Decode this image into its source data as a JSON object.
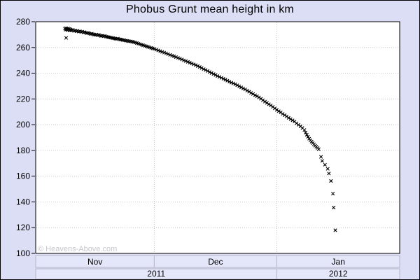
{
  "window": {
    "title": "Phobus Grunt mean height in km"
  },
  "watermark": "© Heavens-Above.com",
  "colors": {
    "background": "#dcdef5",
    "plot_background": "#ffffff",
    "plot_border": "#000000",
    "gridline": "#c8c8c8",
    "marker": "#000000",
    "band_fill": "#e4e6fa",
    "band_border": "#b6b6c6",
    "text": "#000000",
    "watermark_text": "#c6c6cc"
  },
  "chart_data": {
    "type": "scatter",
    "title": "Phobus Grunt mean height in km",
    "xlabel": "",
    "ylabel": "",
    "marker": "x",
    "grid": true,
    "x_unit": "days since 2011-11-01",
    "xlim": [
      0,
      92.1
    ],
    "ylim": [
      100,
      280
    ],
    "y_ticks": [
      280,
      260,
      240,
      220,
      200,
      180,
      160,
      140,
      120,
      100
    ],
    "y_gridlines": [
      260,
      240,
      220,
      200,
      180,
      160,
      140,
      120
    ],
    "x_gridlines": [
      30,
      61
    ],
    "month_bands": [
      {
        "label": "Nov",
        "start": 0,
        "end": 30
      },
      {
        "label": "Dec",
        "start": 30,
        "end": 61
      },
      {
        "label": "Jan",
        "start": 61,
        "end": 92.1
      }
    ],
    "year_bands": [
      {
        "label": "2011",
        "start": 0,
        "end": 61
      },
      {
        "label": "2012",
        "start": 61,
        "end": 92.1
      }
    ],
    "points": [
      [
        7.4,
        274.6
      ],
      [
        7.6,
        273.8
      ],
      [
        7.7,
        267.4
      ],
      [
        7.7,
        274.9
      ],
      [
        7.9,
        274.2
      ],
      [
        8.0,
        273.5
      ],
      [
        8.2,
        274.7
      ],
      [
        8.3,
        273.9
      ],
      [
        8.5,
        274.4
      ],
      [
        8.6,
        273.2
      ],
      [
        8.8,
        274.0
      ],
      [
        8.9,
        273.6
      ],
      [
        9.1,
        273.3
      ],
      [
        9.4,
        273.7
      ],
      [
        9.7,
        272.9
      ],
      [
        10.0,
        273.1
      ],
      [
        10.3,
        272.6
      ],
      [
        10.6,
        272.9
      ],
      [
        10.9,
        272.3
      ],
      [
        11.2,
        272.6
      ],
      [
        11.5,
        272.0
      ],
      [
        11.8,
        272.3
      ],
      [
        12.1,
        271.7
      ],
      [
        12.4,
        271.9
      ],
      [
        12.7,
        271.4
      ],
      [
        13.0,
        271.1
      ],
      [
        13.3,
        271.3
      ],
      [
        13.6,
        270.8
      ],
      [
        13.9,
        270.5
      ],
      [
        14.2,
        270.7
      ],
      [
        14.5,
        270.2
      ],
      [
        14.8,
        270.0
      ],
      [
        15.1,
        269.8
      ],
      [
        15.4,
        270.0
      ],
      [
        15.7,
        269.5
      ],
      [
        16.0,
        269.7
      ],
      [
        16.3,
        269.2
      ],
      [
        16.6,
        268.9
      ],
      [
        16.9,
        269.1
      ],
      [
        17.2,
        268.7
      ],
      [
        17.5,
        268.9
      ],
      [
        17.8,
        268.4
      ],
      [
        18.1,
        268.2
      ],
      [
        18.4,
        268.0
      ],
      [
        18.7,
        267.8
      ],
      [
        19.0,
        267.6
      ],
      [
        19.3,
        267.4
      ],
      [
        19.6,
        267.2
      ],
      [
        19.9,
        267.0
      ],
      [
        20.2,
        266.8
      ],
      [
        20.5,
        266.6
      ],
      [
        20.8,
        266.9
      ],
      [
        21.1,
        266.4
      ],
      [
        21.4,
        266.2
      ],
      [
        21.7,
        266.0
      ],
      [
        22.0,
        265.8
      ],
      [
        22.4,
        265.6
      ],
      [
        22.8,
        265.3
      ],
      [
        23.2,
        265.1
      ],
      [
        23.6,
        264.9
      ],
      [
        24.0,
        264.7
      ],
      [
        24.4,
        264.5
      ],
      [
        24.8,
        264.2
      ],
      [
        25.2,
        263.8
      ],
      [
        25.6,
        263.4
      ],
      [
        26.0,
        263.0
      ],
      [
        26.4,
        262.5
      ],
      [
        26.8,
        262.1
      ],
      [
        27.2,
        261.7
      ],
      [
        27.6,
        261.3
      ],
      [
        28.0,
        260.9
      ],
      [
        28.4,
        260.5
      ],
      [
        28.8,
        260.1
      ],
      [
        29.2,
        259.7
      ],
      [
        29.6,
        259.3
      ],
      [
        30.0,
        258.9
      ],
      [
        30.5,
        258.3
      ],
      [
        31.0,
        257.7
      ],
      [
        31.5,
        257.1
      ],
      [
        32.0,
        256.5
      ],
      [
        32.5,
        256.0
      ],
      [
        33.0,
        255.4
      ],
      [
        33.5,
        254.8
      ],
      [
        34.0,
        254.2
      ],
      [
        34.5,
        253.7
      ],
      [
        35.0,
        253.1
      ],
      [
        35.5,
        252.5
      ],
      [
        36.0,
        251.9
      ],
      [
        36.5,
        251.3
      ],
      [
        37.0,
        250.7
      ],
      [
        37.5,
        250.0
      ],
      [
        38.0,
        249.4
      ],
      [
        38.5,
        248.8
      ],
      [
        39.0,
        248.2
      ],
      [
        39.5,
        247.5
      ],
      [
        40.0,
        246.9
      ],
      [
        40.5,
        246.3
      ],
      [
        41.0,
        245.5
      ],
      [
        41.5,
        244.8
      ],
      [
        42.0,
        244.0
      ],
      [
        42.5,
        243.2
      ],
      [
        43.0,
        242.5
      ],
      [
        43.5,
        241.7
      ],
      [
        44.0,
        240.9
      ],
      [
        44.5,
        240.1
      ],
      [
        45.0,
        239.4
      ],
      [
        45.5,
        238.6
      ],
      [
        46.0,
        237.8
      ],
      [
        46.5,
        237.1
      ],
      [
        47.0,
        236.4
      ],
      [
        47.5,
        235.7
      ],
      [
        48.0,
        234.9
      ],
      [
        48.5,
        234.2
      ],
      [
        49.0,
        233.4
      ],
      [
        49.5,
        232.7
      ],
      [
        50.0,
        232.1
      ],
      [
        50.5,
        231.4
      ],
      [
        51.0,
        230.6
      ],
      [
        51.5,
        229.8
      ],
      [
        52.0,
        229.0
      ],
      [
        52.5,
        228.2
      ],
      [
        53.0,
        227.4
      ],
      [
        53.5,
        226.5
      ],
      [
        54.0,
        225.6
      ],
      [
        54.5,
        224.7
      ],
      [
        55.0,
        223.8
      ],
      [
        55.5,
        222.9
      ],
      [
        56.0,
        222.1
      ],
      [
        56.5,
        221.2
      ],
      [
        57.0,
        220.1
      ],
      [
        57.5,
        219.0
      ],
      [
        58.0,
        217.9
      ],
      [
        58.5,
        216.9
      ],
      [
        59.0,
        215.9
      ],
      [
        59.5,
        214.9
      ],
      [
        60.0,
        213.9
      ],
      [
        60.5,
        212.7
      ],
      [
        61.0,
        211.5
      ],
      [
        61.5,
        210.5
      ],
      [
        62.0,
        209.5
      ],
      [
        62.5,
        208.4
      ],
      [
        63.0,
        207.4
      ],
      [
        63.5,
        206.4
      ],
      [
        64.0,
        205.3
      ],
      [
        64.5,
        204.3
      ],
      [
        65.0,
        203.4
      ],
      [
        65.5,
        202.4
      ],
      [
        66.0,
        201.1
      ],
      [
        66.5,
        199.9
      ],
      [
        67.0,
        198.7
      ],
      [
        67.5,
        197.4
      ],
      [
        68.0,
        195.9
      ],
      [
        68.3,
        193.8
      ],
      [
        68.6,
        192.2
      ],
      [
        68.9,
        190.6
      ],
      [
        69.2,
        189.1
      ],
      [
        69.5,
        187.9
      ],
      [
        69.8,
        186.8
      ],
      [
        70.1,
        185.7
      ],
      [
        70.4,
        184.7
      ],
      [
        70.7,
        183.7
      ],
      [
        71.0,
        182.8
      ],
      [
        71.3,
        181.9
      ],
      [
        71.6,
        181.0
      ],
      [
        72.2,
        175.0
      ],
      [
        72.5,
        171.9
      ],
      [
        73.2,
        168.9
      ],
      [
        73.9,
        165.7
      ],
      [
        74.2,
        162.1
      ],
      [
        74.7,
        156.3
      ],
      [
        75.2,
        146.4
      ],
      [
        75.4,
        135.6
      ],
      [
        75.8,
        118.0
      ]
    ]
  }
}
